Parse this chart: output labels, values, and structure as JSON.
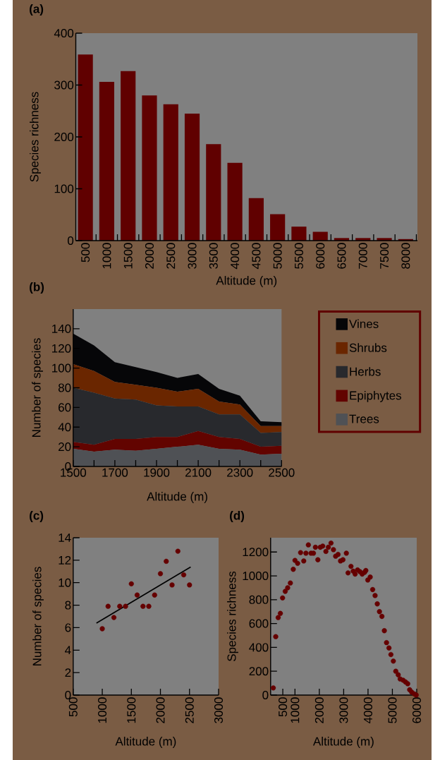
{
  "chart_data": [
    {
      "type": "bar",
      "title": "(a)",
      "xlabel": "Altitude (m)",
      "ylabel": "Species richness",
      "categories": [
        "500",
        "1000",
        "1500",
        "2000",
        "2500",
        "3000",
        "3500",
        "4000",
        "4500",
        "5000",
        "5500",
        "6000",
        "6500",
        "7000",
        "7500",
        "8000"
      ],
      "values": [
        359,
        306,
        327,
        280,
        263,
        245,
        186,
        150,
        82,
        51,
        27,
        17,
        5,
        5,
        5,
        3
      ],
      "color": "#600000",
      "ylim": [
        0,
        400
      ],
      "yticks": [
        0,
        100,
        200,
        300,
        400
      ]
    },
    {
      "type": "area",
      "title": "(b)",
      "xlabel": "Altitude (m)",
      "ylabel": "Number of species",
      "stacked": true,
      "legend": "right",
      "x": [
        1500,
        1600,
        1700,
        1800,
        1900,
        2000,
        2100,
        2200,
        2300,
        2400,
        2500
      ],
      "series": [
        {
          "name": "Trees",
          "color": "#4f5155",
          "values": [
            18,
            15,
            17,
            16,
            18,
            20,
            22,
            18,
            17,
            12,
            13
          ]
        },
        {
          "name": "Epiphytes",
          "color": "#620400",
          "values": [
            7,
            7,
            11,
            12,
            12,
            10,
            14,
            12,
            11,
            8,
            8
          ]
        },
        {
          "name": "Herbs",
          "color": "#28292d",
          "values": [
            55,
            53,
            41,
            40,
            32,
            31,
            25,
            23,
            25,
            14,
            14
          ]
        },
        {
          "name": "Shrubs",
          "color": "#6a2600",
          "values": [
            24,
            22,
            17,
            15,
            18,
            15,
            18,
            13,
            10,
            7,
            6
          ]
        },
        {
          "name": "Vines",
          "color": "#060608",
          "values": [
            31,
            26,
            20,
            18,
            16,
            14,
            15,
            13,
            9,
            5,
            4
          ]
        }
      ],
      "xlim": [
        1500,
        2500
      ],
      "xticks": [
        1500,
        {
          "value": 1600,
          "label": null
        },
        1700,
        {
          "value": 1800,
          "label": null
        },
        1900,
        {
          "value": 2000,
          "label": null
        },
        2100,
        {
          "value": 2200,
          "label": null
        },
        2300,
        {
          "value": 2400,
          "label": null
        },
        2500
      ],
      "ylim": [
        0,
        160
      ],
      "yticks": [
        0,
        20,
        40,
        60,
        80,
        100,
        120,
        140
      ]
    },
    {
      "type": "scatter",
      "title": "(c)",
      "xlabel": "Altitude (m)",
      "ylabel": "Number of species",
      "x": [
        1000,
        1100,
        1200,
        1300,
        1400,
        1500,
        1600,
        1700,
        1800,
        1900,
        2000,
        2100,
        2200,
        2300,
        2400,
        2500
      ],
      "series": [
        {
          "color": "#650000",
          "values": [
            5.9,
            7.9,
            6.9,
            7.9,
            7.9,
            9.9,
            8.9,
            7.9,
            7.9,
            8.9,
            10.8,
            11.9,
            9.8,
            12.8,
            10.7,
            9.8
          ]
        },
        {
          "type": "line",
          "color": "#000000",
          "x": [
            900,
            2520
          ],
          "values": [
            6.4,
            11.4
          ]
        }
      ],
      "xlim": [
        500,
        3000
      ],
      "xticks": [
        500,
        1000,
        1500,
        2000,
        2500,
        3000
      ],
      "ylim": [
        0,
        14
      ],
      "yticks": [
        0,
        2,
        4,
        6,
        8,
        10,
        12,
        14
      ]
    },
    {
      "type": "scatter",
      "title": "(d)",
      "xlabel": "Altitude (m)",
      "ylabel": "Species richness",
      "color": "#650000",
      "x": [
        110,
        210,
        310,
        400,
        490,
        600,
        700,
        810,
        930,
        1000,
        1110,
        1230,
        1360,
        1450,
        1550,
        1660,
        1760,
        1840,
        1940,
        2040,
        2140,
        2270,
        2370,
        2480,
        2580,
        2670,
        2770,
        2870,
        2970,
        3110,
        3180,
        3300,
        3390,
        3470,
        3570,
        3670,
        3760,
        3860,
        3910,
        3990,
        4090,
        4190,
        4290,
        4380,
        4470,
        4570,
        4670,
        4760,
        4860,
        4940,
        5040,
        5140,
        5240,
        5320,
        5440,
        5540,
        5630,
        5710,
        5790,
        5900,
        5980
      ],
      "values": [
        60,
        490,
        650,
        685,
        815,
        870,
        900,
        940,
        1055,
        1130,
        1105,
        1195,
        1125,
        1190,
        1260,
        1190,
        1190,
        1240,
        1135,
        1240,
        1250,
        1205,
        1240,
        1275,
        1220,
        1165,
        1180,
        1125,
        1135,
        1190,
        1025,
        1080,
        1040,
        1015,
        1050,
        1035,
        1015,
        1030,
        1045,
        965,
        990,
        885,
        835,
        765,
        700,
        660,
        540,
        440,
        395,
        340,
        285,
        200,
        170,
        135,
        125,
        110,
        95,
        45,
        25,
        10,
        0
      ],
      "xlim": [
        0,
        6000
      ],
      "xticks": [
        500,
        1000,
        2000,
        3000,
        4000,
        5000,
        6000
      ],
      "ylim": [
        0,
        1320
      ],
      "yticks": [
        0,
        200,
        400,
        600,
        800,
        1000,
        1200
      ]
    }
  ]
}
